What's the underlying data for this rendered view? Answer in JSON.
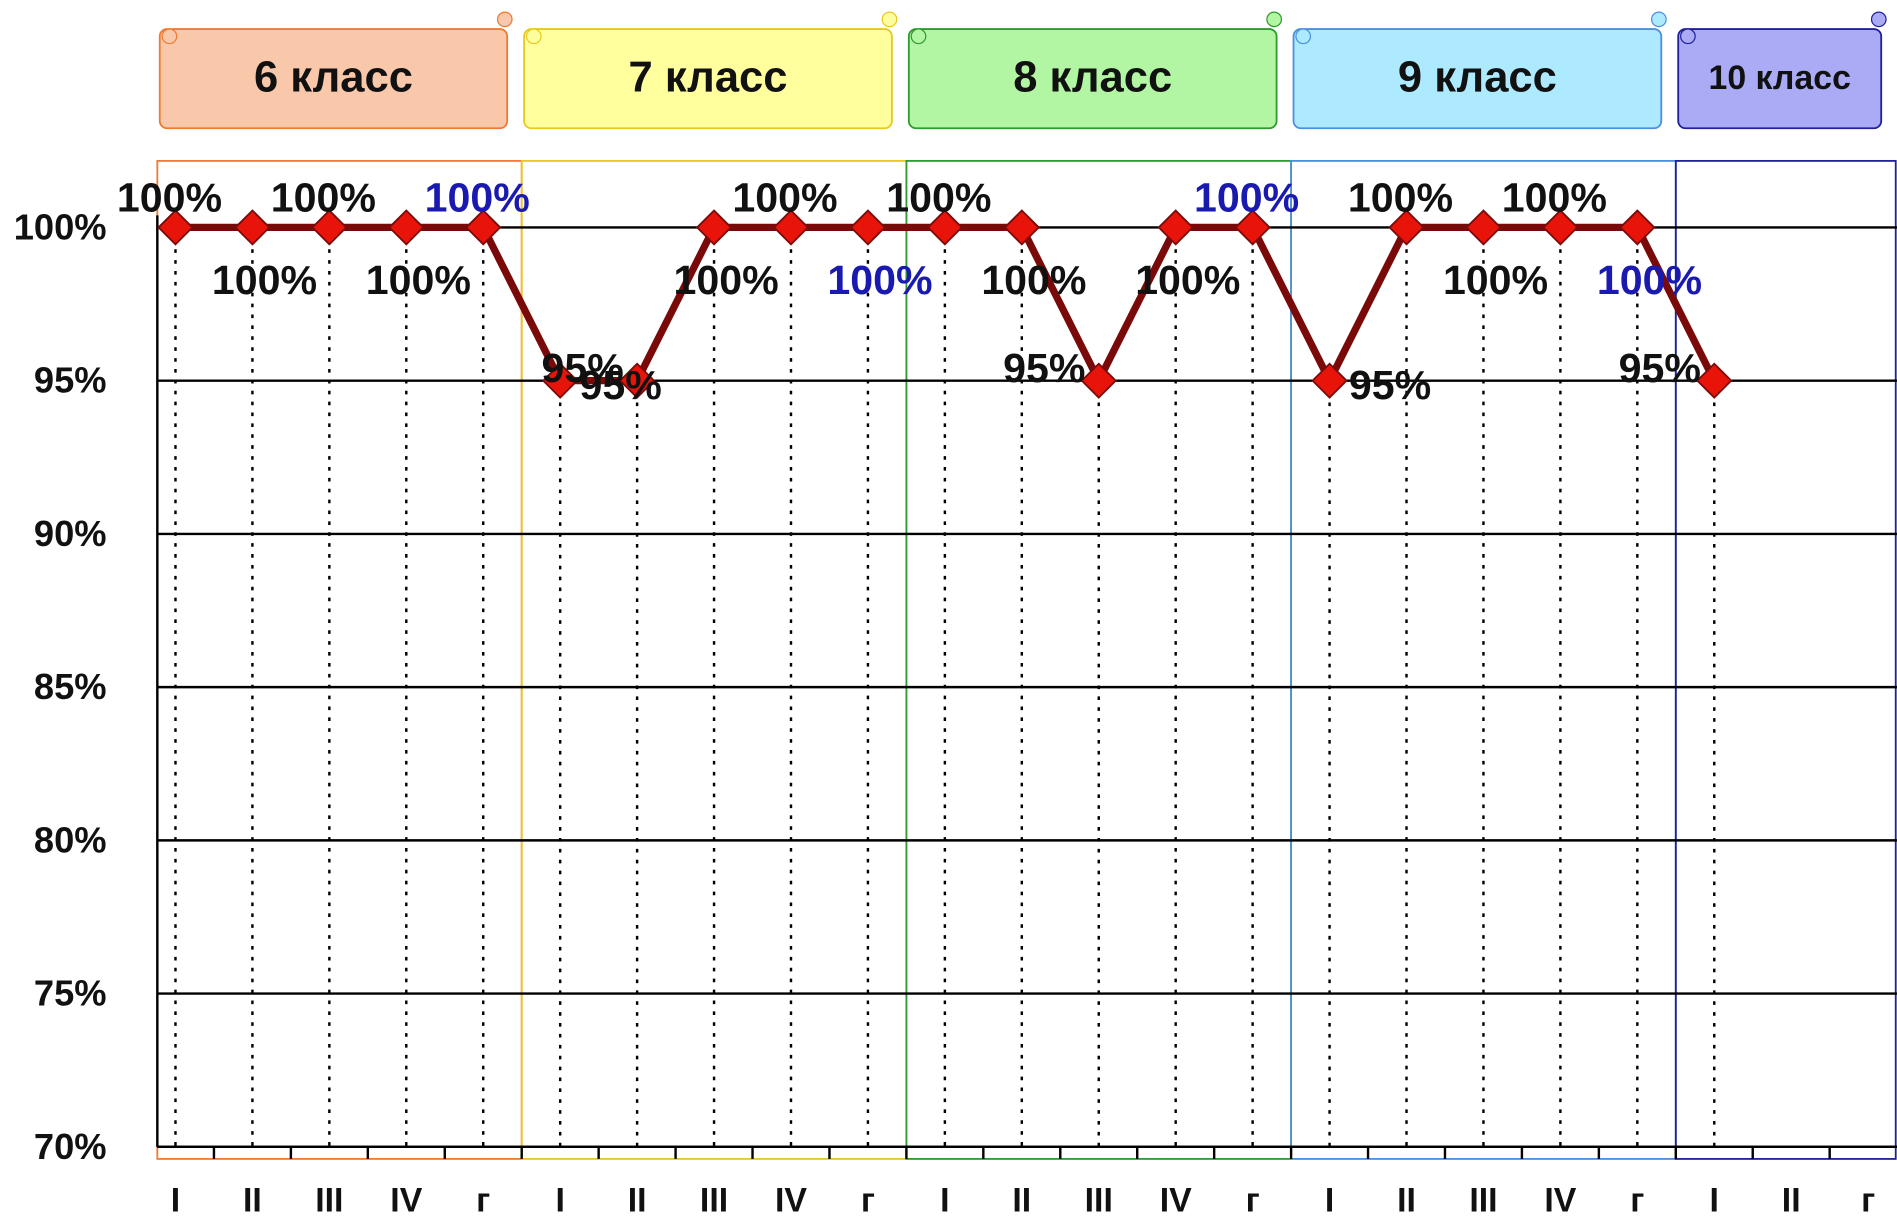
{
  "chart_data": {
    "type": "line",
    "groups": [
      {
        "label": "6 класс",
        "fill": "#f9c8ab",
        "color": "#f07a30",
        "categories": [
          "I",
          "II",
          "III",
          "IV",
          "г"
        ]
      },
      {
        "label": "7 класс",
        "fill": "#ffff9e",
        "color": "#e8c820",
        "categories": [
          "I",
          "II",
          "III",
          "IV",
          "г"
        ]
      },
      {
        "label": "8 класс",
        "fill": "#b2f5a2",
        "color": "#2f9a2f",
        "categories": [
          "I",
          "II",
          "III",
          "IV",
          "г"
        ]
      },
      {
        "label": "9 класс",
        "fill": "#aeeaff",
        "color": "#4a8fe0",
        "categories": [
          "I",
          "II",
          "III",
          "IV",
          "г"
        ]
      },
      {
        "label": "10 класс",
        "fill": "#aaaaf5",
        "color": "#20209a",
        "categories": [
          "I",
          "II",
          "г"
        ]
      }
    ],
    "series": [
      {
        "color": "#7a0a0a",
        "marker_color": "#e8140a",
        "values": [
          100,
          100,
          100,
          100,
          100,
          95,
          95,
          100,
          100,
          100,
          100,
          100,
          95,
          100,
          100,
          95,
          100,
          100,
          100,
          100,
          95,
          null,
          null
        ],
        "value_labels": [
          "100%",
          "100%",
          "100%",
          "100%",
          "100%",
          "95%",
          "95%",
          "100%",
          "100%",
          "100%",
          "100%",
          "100%",
          "95%",
          "100%",
          "100%",
          "95%",
          "100%",
          "100%",
          "100%",
          "100%",
          "95%",
          null,
          null
        ],
        "value_label_colors": [
          "#111",
          "#111",
          "#111",
          "#111",
          "#1a1ab0",
          "#111",
          "#111",
          "#111",
          "#111",
          "#1a1ab0",
          "#111",
          "#111",
          "#111",
          "#111",
          "#1a1ab0",
          "#111",
          "#111",
          "#111",
          "#111",
          "#1a1ab0",
          "#111",
          null,
          null
        ]
      }
    ],
    "ylim": [
      70,
      100
    ],
    "yticks": [
      {
        "value": 70,
        "label": "70%"
      },
      {
        "value": 75,
        "label": "75%"
      },
      {
        "value": 80,
        "label": "80%"
      },
      {
        "value": 85,
        "label": "85%"
      },
      {
        "value": 90,
        "label": "90%"
      },
      {
        "value": 95,
        "label": "95%"
      },
      {
        "value": 100,
        "label": "100%"
      }
    ],
    "grid": true
  }
}
